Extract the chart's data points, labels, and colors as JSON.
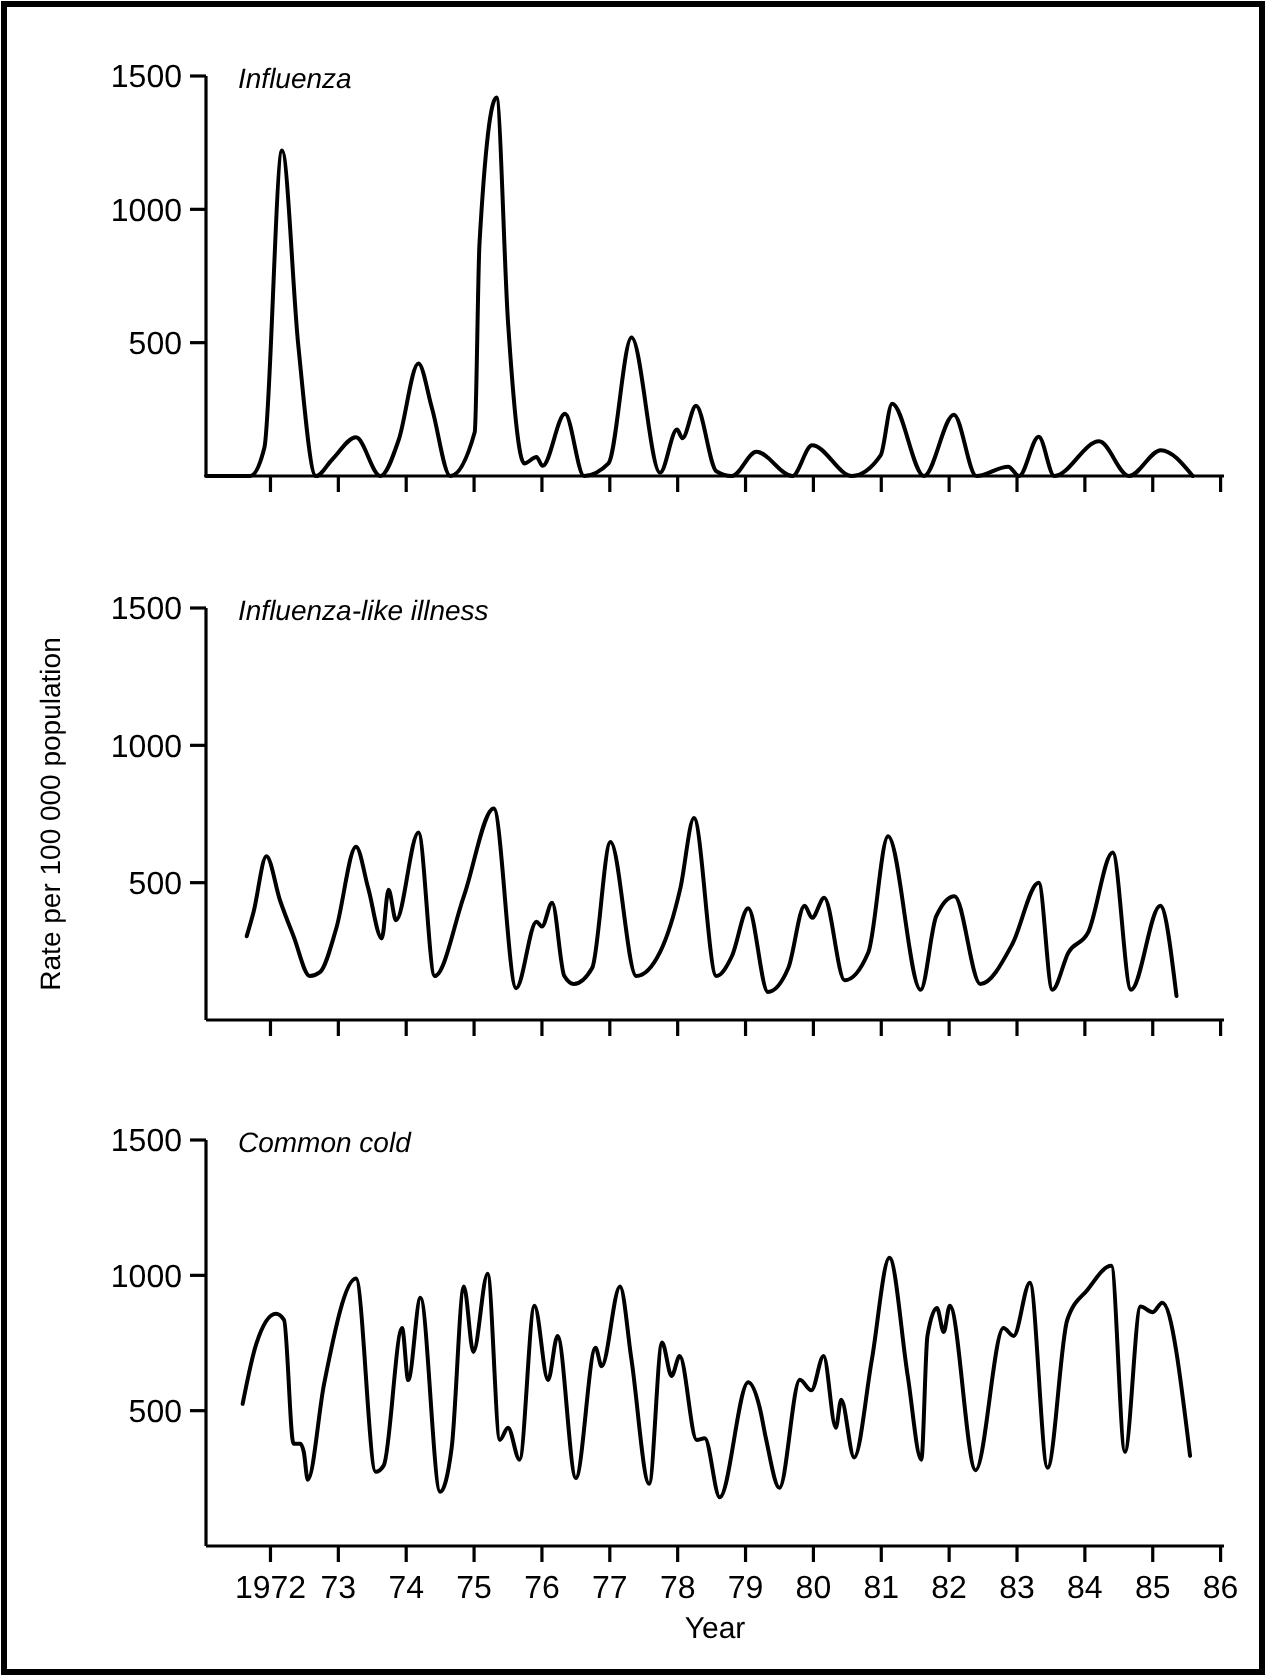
{
  "chart_data": [
    {
      "type": "line",
      "title": "Influenza",
      "xlim": [
        1971.05,
        1986.05
      ],
      "ylim": [
        0,
        1500
      ],
      "yticks": [
        500,
        1000,
        1500
      ],
      "tick_labels": "y",
      "grid": false,
      "marker": "none",
      "line_style": "solid",
      "xticks": [
        1972,
        1973,
        1974,
        1975,
        1976,
        1977,
        1978,
        1979,
        1980,
        1981,
        1982,
        1983,
        1984,
        1985,
        1986
      ],
      "x": [
        1971.05,
        1971.7,
        1971.91,
        1972.17,
        1972.41,
        1972.67,
        1972.91,
        1973.26,
        1973.62,
        1973.89,
        1974.18,
        1974.38,
        1974.65,
        1975.01,
        1975.08,
        1975.33,
        1975.5,
        1975.74,
        1975.92,
        1976.01,
        1976.34,
        1976.62,
        1976.98,
        1977.32,
        1977.74,
        1977.99,
        1978.07,
        1978.27,
        1978.57,
        1978.8,
        1979.16,
        1979.69,
        1979.98,
        1980.57,
        1980.99,
        1981.16,
        1981.63,
        1982.07,
        1982.4,
        1982.87,
        1983.03,
        1983.32,
        1983.55,
        1984.21,
        1984.65,
        1985.12,
        1985.59
      ],
      "series": [
        {
          "color": "#000000",
          "values": [
            0,
            0,
            106,
            1221,
            490,
            0,
            62,
            145,
            0,
            136,
            422,
            254,
            0,
            165,
            873,
            1419,
            578,
            47,
            71,
            38,
            233,
            0,
            47,
            519,
            12,
            174,
            142,
            263,
            18,
            0,
            91,
            0,
            115,
            0,
            77,
            271,
            0,
            230,
            0,
            35,
            0,
            147,
            0,
            130,
            0,
            97,
            0
          ]
        }
      ]
    },
    {
      "type": "line",
      "title": "Influenza-like illness",
      "ylabel": "Rate per 100 000 population",
      "xlim": [
        1971.05,
        1986.05
      ],
      "ylim": [
        0,
        1500
      ],
      "yticks": [
        500,
        1000,
        1500
      ],
      "tick_labels": "y",
      "grid": false,
      "marker": "none",
      "line_style": "solid",
      "xticks": [
        1972,
        1973,
        1974,
        1975,
        1976,
        1977,
        1978,
        1979,
        1980,
        1981,
        1982,
        1983,
        1984,
        1985,
        1986
      ],
      "x": [
        1971.65,
        1971.75,
        1971.94,
        1972.14,
        1972.34,
        1972.58,
        1972.73,
        1972.97,
        1973.26,
        1973.44,
        1973.64,
        1973.74,
        1973.85,
        1974.18,
        1974.42,
        1974.85,
        1975.29,
        1975.62,
        1975.92,
        1976.0,
        1976.15,
        1976.33,
        1976.47,
        1976.74,
        1977.01,
        1977.39,
        1977.74,
        1978.04,
        1978.24,
        1978.57,
        1978.8,
        1979.04,
        1979.33,
        1979.63,
        1979.87,
        1979.98,
        1980.16,
        1980.46,
        1980.81,
        1981.1,
        1981.58,
        1981.81,
        1982.08,
        1982.46,
        1982.93,
        1983.32,
        1983.52,
        1983.76,
        1984.05,
        1984.41,
        1984.68,
        1985.11,
        1985.35
      ],
      "series": [
        {
          "color": "#000000",
          "values": [
            305,
            392,
            596,
            436,
            305,
            160,
            174,
            334,
            631,
            480,
            297,
            474,
            363,
            683,
            160,
            451,
            770,
            116,
            358,
            340,
            427,
            160,
            131,
            189,
            648,
            160,
            247,
            480,
            735,
            160,
            233,
            407,
            102,
            189,
            416,
            372,
            445,
            145,
            247,
            669,
            110,
            378,
            451,
            131,
            276,
            500,
            110,
            247,
            320,
            610,
            110,
            416,
            87
          ]
        }
      ]
    },
    {
      "type": "line",
      "title": "Common cold",
      "xlabel": "Year",
      "xlim": [
        1971.05,
        1986.05
      ],
      "ylim": [
        0,
        1500
      ],
      "yticks": [
        500,
        1000,
        1500
      ],
      "grid": false,
      "marker": "none",
      "line_style": "solid",
      "xticks": [
        1972,
        {
          "value": 1973,
          "label": "73"
        },
        {
          "value": 1974,
          "label": "74"
        },
        {
          "value": 1975,
          "label": "75"
        },
        {
          "value": 1976,
          "label": "76"
        },
        {
          "value": 1977,
          "label": "77"
        },
        {
          "value": 1978,
          "label": "78"
        },
        {
          "value": 1979,
          "label": "79"
        },
        {
          "value": 1980,
          "label": "80"
        },
        {
          "value": 1981,
          "label": "81"
        },
        {
          "value": 1982,
          "label": "82"
        },
        {
          "value": 1983,
          "label": "83"
        },
        {
          "value": 1984,
          "label": "84"
        },
        {
          "value": 1985,
          "label": "85"
        },
        {
          "value": 1986,
          "label": "86"
        }
      ],
      "x": [
        1971.59,
        1971.79,
        1972.08,
        1972.2,
        1972.34,
        1972.44,
        1972.49,
        1972.55,
        1972.79,
        1973.26,
        1973.55,
        1973.67,
        1973.94,
        1974.03,
        1974.21,
        1974.5,
        1974.67,
        1974.85,
        1974.99,
        1975.2,
        1975.38,
        1975.5,
        1975.67,
        1975.89,
        1976.09,
        1976.23,
        1976.5,
        1976.79,
        1976.88,
        1977.15,
        1977.32,
        1977.58,
        1977.77,
        1977.91,
        1978.03,
        1978.28,
        1978.4,
        1978.62,
        1979.04,
        1979.21,
        1979.3,
        1979.5,
        1979.8,
        1979.97,
        1980.15,
        1980.33,
        1980.41,
        1980.6,
        1980.86,
        1981.12,
        1981.39,
        1981.59,
        1981.68,
        1981.82,
        1981.92,
        1982.01,
        1982.39,
        1982.8,
        1982.95,
        1983.19,
        1983.45,
        1983.74,
        1984.04,
        1984.39,
        1984.59,
        1984.82,
        1985.0,
        1985.14,
        1985.55
      ],
      "series": [
        {
          "color": "#000000",
          "values": [
            525,
            746,
            858,
            835,
            378,
            378,
            348,
            245,
            599,
            988,
            274,
            298,
            805,
            613,
            917,
            200,
            363,
            959,
            717,
            1006,
            392,
            437,
            319,
            888,
            613,
            776,
            251,
            732,
            664,
            959,
            687,
            230,
            752,
            628,
            702,
            392,
            398,
            180,
            605,
            510,
            398,
            215,
            614,
            575,
            702,
            437,
            540,
            327,
            687,
            1065,
            628,
            319,
            776,
            879,
            791,
            888,
            280,
            805,
            776,
            973,
            289,
            835,
            947,
            1035,
            348,
            885,
            864,
            899,
            333
          ]
        }
      ]
    }
  ]
}
